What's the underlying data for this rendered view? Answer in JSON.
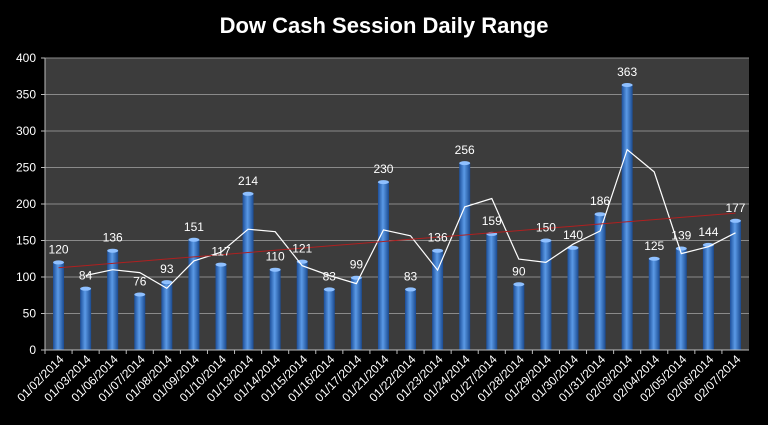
{
  "chart_data": {
    "type": "bar",
    "title": "Dow Cash Session Daily Range",
    "xlabel": "",
    "ylabel": "",
    "ylim": [
      0,
      400
    ],
    "yticks": [
      0,
      50,
      100,
      150,
      200,
      250,
      300,
      350,
      400
    ],
    "grid": true,
    "legend": "none",
    "categories": [
      "01/02/2014",
      "01/03/2014",
      "01/06/2014",
      "01/07/2014",
      "01/08/2014",
      "01/09/2014",
      "01/10/2014",
      "01/13/2014",
      "01/14/2014",
      "01/15/2014",
      "01/16/2014",
      "01/17/2014",
      "01/21/2014",
      "01/22/2014",
      "01/23/2014",
      "01/24/2014",
      "01/27/2014",
      "01/28/2014",
      "01/29/2014",
      "01/30/2014",
      "01/31/2014",
      "02/03/2014",
      "02/04/2014",
      "02/05/2014",
      "02/06/2014",
      "02/07/2014"
    ],
    "series": [
      {
        "type": "bar",
        "values": [
          120,
          84,
          136,
          76,
          93,
          151,
          117,
          214,
          110,
          121,
          83,
          99,
          230,
          83,
          136,
          256,
          159,
          90,
          150,
          140,
          186,
          363,
          125,
          139,
          144,
          177
        ],
        "color": "#3a78c8"
      },
      {
        "type": "line",
        "description": "2-period moving average",
        "values": [
          null,
          102,
          110,
          106,
          84.5,
          122,
          134,
          165.5,
          162,
          115.5,
          102,
          91,
          164.5,
          156.5,
          109.5,
          196,
          207.5,
          124.5,
          120,
          145,
          163,
          274.5,
          244,
          132,
          141.5,
          160.5
        ],
        "color": "#ffffff"
      },
      {
        "type": "line",
        "description": "linear trendline",
        "values": [
          112.6,
          115.6,
          118.6,
          121.6,
          124.6,
          127.6,
          130.6,
          133.6,
          136.6,
          139.6,
          142.6,
          145.6,
          148.6,
          151.6,
          154.6,
          157.6,
          160.6,
          163.6,
          166.6,
          169.6,
          172.6,
          175.6,
          178.6,
          181.6,
          184.6,
          187.6
        ],
        "color": "#b02020"
      }
    ]
  }
}
